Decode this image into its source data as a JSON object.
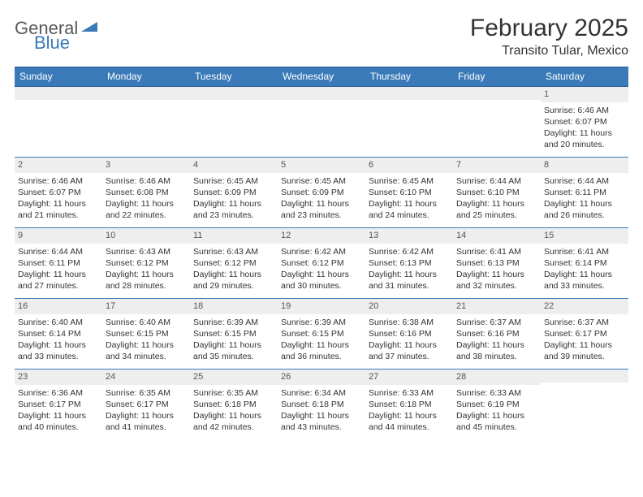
{
  "brand": {
    "part1": "General",
    "part2": "Blue"
  },
  "title": "February 2025",
  "location": "Transito Tular, Mexico",
  "colors": {
    "header_bg": "#3a7ab8",
    "header_border": "#2c5f8f",
    "daynum_bg": "#eeeeee",
    "row_border": "#3a7ab8",
    "text": "#333333",
    "logo_gray": "#58595b",
    "logo_blue": "#3a7ab8"
  },
  "day_headers": [
    "Sunday",
    "Monday",
    "Tuesday",
    "Wednesday",
    "Thursday",
    "Friday",
    "Saturday"
  ],
  "weeks": [
    [
      {
        "n": "",
        "l1": "",
        "l2": "",
        "l3": "",
        "l4": ""
      },
      {
        "n": "",
        "l1": "",
        "l2": "",
        "l3": "",
        "l4": ""
      },
      {
        "n": "",
        "l1": "",
        "l2": "",
        "l3": "",
        "l4": ""
      },
      {
        "n": "",
        "l1": "",
        "l2": "",
        "l3": "",
        "l4": ""
      },
      {
        "n": "",
        "l1": "",
        "l2": "",
        "l3": "",
        "l4": ""
      },
      {
        "n": "",
        "l1": "",
        "l2": "",
        "l3": "",
        "l4": ""
      },
      {
        "n": "1",
        "l1": "Sunrise: 6:46 AM",
        "l2": "Sunset: 6:07 PM",
        "l3": "Daylight: 11 hours",
        "l4": "and 20 minutes."
      }
    ],
    [
      {
        "n": "2",
        "l1": "Sunrise: 6:46 AM",
        "l2": "Sunset: 6:07 PM",
        "l3": "Daylight: 11 hours",
        "l4": "and 21 minutes."
      },
      {
        "n": "3",
        "l1": "Sunrise: 6:46 AM",
        "l2": "Sunset: 6:08 PM",
        "l3": "Daylight: 11 hours",
        "l4": "and 22 minutes."
      },
      {
        "n": "4",
        "l1": "Sunrise: 6:45 AM",
        "l2": "Sunset: 6:09 PM",
        "l3": "Daylight: 11 hours",
        "l4": "and 23 minutes."
      },
      {
        "n": "5",
        "l1": "Sunrise: 6:45 AM",
        "l2": "Sunset: 6:09 PM",
        "l3": "Daylight: 11 hours",
        "l4": "and 23 minutes."
      },
      {
        "n": "6",
        "l1": "Sunrise: 6:45 AM",
        "l2": "Sunset: 6:10 PM",
        "l3": "Daylight: 11 hours",
        "l4": "and 24 minutes."
      },
      {
        "n": "7",
        "l1": "Sunrise: 6:44 AM",
        "l2": "Sunset: 6:10 PM",
        "l3": "Daylight: 11 hours",
        "l4": "and 25 minutes."
      },
      {
        "n": "8",
        "l1": "Sunrise: 6:44 AM",
        "l2": "Sunset: 6:11 PM",
        "l3": "Daylight: 11 hours",
        "l4": "and 26 minutes."
      }
    ],
    [
      {
        "n": "9",
        "l1": "Sunrise: 6:44 AM",
        "l2": "Sunset: 6:11 PM",
        "l3": "Daylight: 11 hours",
        "l4": "and 27 minutes."
      },
      {
        "n": "10",
        "l1": "Sunrise: 6:43 AM",
        "l2": "Sunset: 6:12 PM",
        "l3": "Daylight: 11 hours",
        "l4": "and 28 minutes."
      },
      {
        "n": "11",
        "l1": "Sunrise: 6:43 AM",
        "l2": "Sunset: 6:12 PM",
        "l3": "Daylight: 11 hours",
        "l4": "and 29 minutes."
      },
      {
        "n": "12",
        "l1": "Sunrise: 6:42 AM",
        "l2": "Sunset: 6:12 PM",
        "l3": "Daylight: 11 hours",
        "l4": "and 30 minutes."
      },
      {
        "n": "13",
        "l1": "Sunrise: 6:42 AM",
        "l2": "Sunset: 6:13 PM",
        "l3": "Daylight: 11 hours",
        "l4": "and 31 minutes."
      },
      {
        "n": "14",
        "l1": "Sunrise: 6:41 AM",
        "l2": "Sunset: 6:13 PM",
        "l3": "Daylight: 11 hours",
        "l4": "and 32 minutes."
      },
      {
        "n": "15",
        "l1": "Sunrise: 6:41 AM",
        "l2": "Sunset: 6:14 PM",
        "l3": "Daylight: 11 hours",
        "l4": "and 33 minutes."
      }
    ],
    [
      {
        "n": "16",
        "l1": "Sunrise: 6:40 AM",
        "l2": "Sunset: 6:14 PM",
        "l3": "Daylight: 11 hours",
        "l4": "and 33 minutes."
      },
      {
        "n": "17",
        "l1": "Sunrise: 6:40 AM",
        "l2": "Sunset: 6:15 PM",
        "l3": "Daylight: 11 hours",
        "l4": "and 34 minutes."
      },
      {
        "n": "18",
        "l1": "Sunrise: 6:39 AM",
        "l2": "Sunset: 6:15 PM",
        "l3": "Daylight: 11 hours",
        "l4": "and 35 minutes."
      },
      {
        "n": "19",
        "l1": "Sunrise: 6:39 AM",
        "l2": "Sunset: 6:15 PM",
        "l3": "Daylight: 11 hours",
        "l4": "and 36 minutes."
      },
      {
        "n": "20",
        "l1": "Sunrise: 6:38 AM",
        "l2": "Sunset: 6:16 PM",
        "l3": "Daylight: 11 hours",
        "l4": "and 37 minutes."
      },
      {
        "n": "21",
        "l1": "Sunrise: 6:37 AM",
        "l2": "Sunset: 6:16 PM",
        "l3": "Daylight: 11 hours",
        "l4": "and 38 minutes."
      },
      {
        "n": "22",
        "l1": "Sunrise: 6:37 AM",
        "l2": "Sunset: 6:17 PM",
        "l3": "Daylight: 11 hours",
        "l4": "and 39 minutes."
      }
    ],
    [
      {
        "n": "23",
        "l1": "Sunrise: 6:36 AM",
        "l2": "Sunset: 6:17 PM",
        "l3": "Daylight: 11 hours",
        "l4": "and 40 minutes."
      },
      {
        "n": "24",
        "l1": "Sunrise: 6:35 AM",
        "l2": "Sunset: 6:17 PM",
        "l3": "Daylight: 11 hours",
        "l4": "and 41 minutes."
      },
      {
        "n": "25",
        "l1": "Sunrise: 6:35 AM",
        "l2": "Sunset: 6:18 PM",
        "l3": "Daylight: 11 hours",
        "l4": "and 42 minutes."
      },
      {
        "n": "26",
        "l1": "Sunrise: 6:34 AM",
        "l2": "Sunset: 6:18 PM",
        "l3": "Daylight: 11 hours",
        "l4": "and 43 minutes."
      },
      {
        "n": "27",
        "l1": "Sunrise: 6:33 AM",
        "l2": "Sunset: 6:18 PM",
        "l3": "Daylight: 11 hours",
        "l4": "and 44 minutes."
      },
      {
        "n": "28",
        "l1": "Sunrise: 6:33 AM",
        "l2": "Sunset: 6:19 PM",
        "l3": "Daylight: 11 hours",
        "l4": "and 45 minutes."
      },
      {
        "n": "",
        "l1": "",
        "l2": "",
        "l3": "",
        "l4": ""
      }
    ]
  ]
}
